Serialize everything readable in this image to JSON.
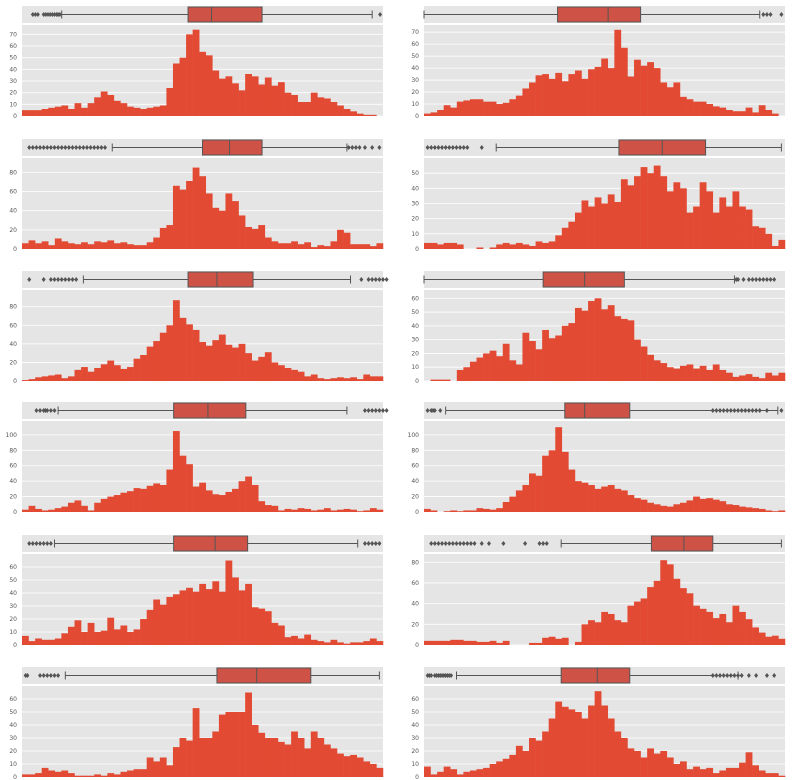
{
  "figure": {
    "colors": {
      "hist_fill": "#E24A33",
      "box_fill": "#CF5246",
      "box_line": "#555555",
      "panel_bg": "#E5E5E5",
      "grid": "#FFFFFF",
      "tick_text": "#555555",
      "page_bg": "#FFFFFF"
    }
  },
  "chart_data": [
    {
      "type": "histogram+boxplot",
      "grid": true,
      "ylim": [
        0,
        78
      ],
      "yticks": [
        "0",
        "10",
        "20",
        "30",
        "40",
        "50",
        "60",
        "70"
      ],
      "counts": [
        5,
        5,
        5,
        6,
        7,
        8,
        9,
        6,
        11,
        7,
        11,
        16,
        21,
        18,
        13,
        11,
        8,
        7,
        6,
        7,
        8,
        9,
        24,
        45,
        50,
        70,
        74,
        55,
        52,
        39,
        32,
        34,
        28,
        22,
        36,
        34,
        27,
        33,
        26,
        29,
        20,
        18,
        12,
        12,
        20,
        16,
        15,
        12,
        9,
        6,
        4,
        2,
        1,
        1,
        0
      ],
      "box": {
        "min": 0.11,
        "q1": 0.46,
        "median": 0.525,
        "q3": 0.665,
        "max": 0.97
      },
      "outliers": [
        0.03,
        0.037,
        0.044,
        0.06,
        0.066,
        0.072,
        0.078,
        0.084,
        0.09,
        0.096,
        0.1,
        0.105,
        0.992
      ]
    },
    {
      "type": "histogram+boxplot",
      "grid": true,
      "ylim": [
        0,
        76
      ],
      "yticks": [
        "0",
        "10",
        "20",
        "30",
        "40",
        "50",
        "60",
        "70"
      ],
      "counts": [
        2,
        3,
        5,
        9,
        7,
        12,
        13,
        14,
        14,
        12,
        12,
        10,
        11,
        14,
        17,
        23,
        28,
        34,
        35,
        31,
        36,
        29,
        35,
        38,
        31,
        39,
        41,
        48,
        40,
        72,
        57,
        33,
        47,
        42,
        45,
        40,
        28,
        24,
        28,
        16,
        14,
        12,
        12,
        10,
        8,
        7,
        5,
        4,
        4,
        7,
        3,
        9,
        5,
        2,
        0
      ],
      "box": {
        "min": 0.0,
        "q1": 0.37,
        "median": 0.51,
        "q3": 0.6,
        "max": 0.93
      },
      "outliers": [
        0.94,
        0.95,
        0.96,
        0.99
      ]
    },
    {
      "type": "histogram+boxplot",
      "grid": true,
      "ylim": [
        0,
        95
      ],
      "yticks": [
        "0",
        "20",
        "40",
        "60",
        "80"
      ],
      "counts": [
        6,
        9,
        6,
        8,
        4,
        11,
        8,
        6,
        5,
        7,
        5,
        8,
        7,
        9,
        6,
        7,
        5,
        4,
        4,
        7,
        12,
        22,
        25,
        66,
        62,
        71,
        85,
        76,
        58,
        43,
        40,
        58,
        50,
        35,
        23,
        21,
        25,
        12,
        8,
        6,
        6,
        8,
        5,
        7,
        2,
        4,
        3,
        8,
        20,
        17,
        5,
        5,
        5,
        3,
        6
      ],
      "box": {
        "min": 0.25,
        "q1": 0.5,
        "median": 0.575,
        "q3": 0.665,
        "max": 0.9
      },
      "outliers": [
        0.02,
        0.03,
        0.04,
        0.05,
        0.06,
        0.07,
        0.08,
        0.09,
        0.1,
        0.11,
        0.12,
        0.13,
        0.14,
        0.15,
        0.16,
        0.17,
        0.18,
        0.19,
        0.2,
        0.21,
        0.22,
        0.23,
        0.905,
        0.915,
        0.925,
        0.935,
        0.95,
        0.97,
        0.99
      ]
    },
    {
      "type": "histogram+boxplot",
      "grid": true,
      "ylim": [
        0,
        60
      ],
      "yticks": [
        "0",
        "10",
        "20",
        "30",
        "40",
        "50"
      ],
      "counts": [
        4,
        4,
        3,
        4,
        4,
        3,
        0,
        0,
        1,
        0,
        1,
        3,
        4,
        3,
        4,
        3,
        2,
        5,
        4,
        5,
        9,
        14,
        18,
        24,
        32,
        28,
        34,
        30,
        36,
        31,
        46,
        42,
        48,
        54,
        50,
        55,
        48,
        38,
        44,
        40,
        24,
        28,
        44,
        38,
        24,
        34,
        28,
        38,
        28,
        26,
        15,
        14,
        10,
        2,
        6
      ],
      "box": {
        "min": 0.2,
        "q1": 0.54,
        "median": 0.66,
        "q3": 0.78,
        "max": 0.99
      },
      "outliers": [
        0.01,
        0.02,
        0.03,
        0.04,
        0.05,
        0.06,
        0.07,
        0.08,
        0.09,
        0.1,
        0.11,
        0.12,
        0.16
      ]
    },
    {
      "type": "histogram+boxplot",
      "grid": true,
      "ylim": [
        0,
        98
      ],
      "yticks": [
        "0",
        "20",
        "40",
        "60",
        "80"
      ],
      "counts": [
        1,
        2,
        4,
        5,
        6,
        7,
        3,
        5,
        12,
        15,
        10,
        14,
        18,
        22,
        17,
        13,
        15,
        24,
        28,
        37,
        43,
        52,
        60,
        87,
        68,
        61,
        55,
        42,
        38,
        44,
        50,
        39,
        36,
        40,
        30,
        22,
        26,
        31,
        20,
        17,
        14,
        12,
        10,
        5,
        7,
        3,
        2,
        3,
        4,
        3,
        4,
        2,
        7,
        5,
        5
      ],
      "box": {
        "min": 0.17,
        "q1": 0.46,
        "median": 0.54,
        "q3": 0.64,
        "max": 0.91
      },
      "outliers": [
        0.02,
        0.06,
        0.08,
        0.09,
        0.1,
        0.11,
        0.12,
        0.13,
        0.14,
        0.15,
        0.94,
        0.96,
        0.97,
        0.98,
        0.99,
        1.0,
        1.01
      ]
    },
    {
      "type": "histogram+boxplot",
      "grid": true,
      "ylim": [
        0,
        66
      ],
      "yticks": [
        "0",
        "10",
        "20",
        "30",
        "40",
        "50",
        "60"
      ],
      "counts": [
        0,
        1,
        1,
        1,
        0,
        8,
        10,
        14,
        17,
        20,
        22,
        18,
        27,
        15,
        12,
        35,
        29,
        23,
        37,
        31,
        33,
        40,
        42,
        53,
        51,
        58,
        60,
        52,
        55,
        47,
        45,
        44,
        30,
        25,
        19,
        15,
        13,
        10,
        9,
        11,
        12,
        9,
        11,
        8,
        12,
        8,
        6,
        3,
        4,
        5,
        3,
        2,
        6,
        4,
        6
      ],
      "box": {
        "min": 0.0,
        "q1": 0.33,
        "median": 0.445,
        "q3": 0.555,
        "max": 0.86
      },
      "outliers": [
        0.865,
        0.87,
        0.885,
        0.9,
        0.91,
        0.92,
        0.93,
        0.94,
        0.95,
        0.96,
        0.97
      ]
    },
    {
      "type": "histogram+boxplot",
      "grid": true,
      "ylim": [
        0,
        118
      ],
      "yticks": [
        "0",
        "20",
        "40",
        "60",
        "80",
        "100"
      ],
      "counts": [
        3,
        8,
        4,
        2,
        3,
        5,
        7,
        12,
        15,
        8,
        2,
        12,
        17,
        20,
        22,
        25,
        27,
        31,
        30,
        34,
        37,
        35,
        55,
        105,
        73,
        62,
        33,
        38,
        28,
        23,
        22,
        26,
        30,
        40,
        46,
        35,
        14,
        9,
        8,
        2,
        4,
        3,
        5,
        4,
        2,
        3,
        5,
        2,
        3,
        4,
        3,
        1,
        2,
        5,
        3
      ],
      "box": {
        "min": 0.1,
        "q1": 0.42,
        "median": 0.515,
        "q3": 0.62,
        "max": 0.9
      },
      "outliers": [
        0.04,
        0.05,
        0.06,
        0.065,
        0.07,
        0.08,
        0.09,
        0.95,
        0.96,
        0.97,
        0.98,
        0.99,
        1.0,
        1.01
      ]
    },
    {
      "type": "histogram+boxplot",
      "grid": true,
      "ylim": [
        0,
        118
      ],
      "yticks": [
        "0",
        "20",
        "40",
        "60",
        "80",
        "100"
      ],
      "counts": [
        4,
        2,
        0,
        1,
        2,
        1,
        2,
        2,
        5,
        4,
        3,
        5,
        13,
        20,
        28,
        35,
        50,
        47,
        73,
        80,
        110,
        78,
        55,
        40,
        38,
        35,
        30,
        33,
        35,
        30,
        28,
        22,
        18,
        16,
        12,
        10,
        8,
        7,
        10,
        12,
        15,
        20,
        17,
        18,
        16,
        14,
        10,
        9,
        7,
        6,
        5,
        4,
        2,
        1,
        2
      ],
      "box": {
        "min": 0.06,
        "q1": 0.39,
        "median": 0.445,
        "q3": 0.57,
        "max": 0.98
      },
      "outliers": [
        0.01,
        0.02,
        0.025,
        0.03,
        0.045,
        0.8,
        0.81,
        0.82,
        0.83,
        0.84,
        0.85,
        0.86,
        0.87,
        0.88,
        0.89,
        0.9,
        0.91,
        0.92,
        0.93,
        0.95,
        0.99
      ]
    },
    {
      "type": "histogram+boxplot",
      "grid": true,
      "ylim": [
        0,
        70
      ],
      "yticks": [
        "0",
        "10",
        "20",
        "30",
        "40",
        "50",
        "60"
      ],
      "counts": [
        7,
        3,
        5,
        4,
        4,
        5,
        9,
        14,
        19,
        10,
        17,
        10,
        11,
        21,
        12,
        15,
        10,
        12,
        20,
        27,
        35,
        31,
        37,
        39,
        42,
        44,
        41,
        47,
        43,
        49,
        41,
        65,
        52,
        42,
        47,
        29,
        28,
        26,
        17,
        15,
        6,
        7,
        5,
        8,
        4,
        3,
        2,
        4,
        2,
        1,
        2,
        2,
        3,
        5,
        3
      ],
      "box": {
        "min": 0.09,
        "q1": 0.42,
        "median": 0.535,
        "q3": 0.625,
        "max": 0.93
      },
      "outliers": [
        0.02,
        0.03,
        0.04,
        0.05,
        0.06,
        0.07,
        0.08,
        0.95,
        0.96,
        0.97,
        0.98,
        0.99
      ]
    },
    {
      "type": "histogram+boxplot",
      "grid": true,
      "ylim": [
        0,
        88
      ],
      "yticks": [
        "0",
        "20",
        "40",
        "60",
        "80"
      ],
      "counts": [
        4,
        4,
        4,
        4,
        5,
        5,
        4,
        4,
        3,
        3,
        4,
        2,
        4,
        0,
        0,
        0,
        2,
        2,
        7,
        8,
        6,
        7,
        0,
        3,
        20,
        24,
        22,
        32,
        30,
        24,
        22,
        38,
        42,
        45,
        56,
        62,
        82,
        78,
        64,
        55,
        50,
        38,
        35,
        32,
        26,
        30,
        22,
        38,
        32,
        25,
        17,
        12,
        8,
        9,
        6
      ],
      "box": {
        "min": 0.38,
        "q1": 0.63,
        "median": 0.72,
        "q3": 0.8,
        "max": 0.99
      },
      "outliers": [
        0.02,
        0.03,
        0.04,
        0.05,
        0.06,
        0.07,
        0.08,
        0.09,
        0.1,
        0.11,
        0.12,
        0.13,
        0.14,
        0.16,
        0.18,
        0.22,
        0.28,
        0.32,
        0.33,
        0.34
      ]
    },
    {
      "type": "histogram+boxplot",
      "grid": true,
      "ylim": [
        0,
        70
      ],
      "yticks": [
        "0",
        "10",
        "20",
        "30",
        "40",
        "50",
        "60"
      ],
      "counts": [
        2,
        2,
        3,
        7,
        5,
        4,
        5,
        3,
        1,
        1,
        1,
        2,
        1,
        3,
        2,
        4,
        5,
        6,
        6,
        15,
        12,
        15,
        9,
        23,
        30,
        28,
        53,
        30,
        30,
        35,
        48,
        50,
        50,
        50,
        65,
        40,
        34,
        30,
        30,
        27,
        25,
        35,
        30,
        22,
        35,
        30,
        25,
        22,
        18,
        16,
        17,
        15,
        12,
        10,
        7
      ],
      "box": {
        "min": 0.12,
        "q1": 0.54,
        "median": 0.65,
        "q3": 0.8,
        "max": 0.99
      },
      "outliers": [
        0.01,
        0.015,
        0.05,
        0.06,
        0.07,
        0.08,
        0.09,
        0.1
      ]
    },
    {
      "type": "histogram+boxplot",
      "grid": true,
      "ylim": [
        0,
        70
      ],
      "yticks": [
        "0",
        "10",
        "20",
        "30",
        "40",
        "50",
        "60"
      ],
      "counts": [
        8,
        2,
        4,
        8,
        6,
        2,
        4,
        5,
        6,
        7,
        10,
        12,
        14,
        17,
        24,
        20,
        30,
        28,
        35,
        45,
        58,
        54,
        52,
        50,
        45,
        55,
        66,
        55,
        45,
        35,
        30,
        22,
        20,
        15,
        22,
        18,
        20,
        15,
        10,
        12,
        6,
        8,
        6,
        7,
        3,
        5,
        7,
        7,
        11,
        19,
        9,
        5,
        3,
        3,
        1
      ],
      "box": {
        "min": 0.09,
        "q1": 0.38,
        "median": 0.48,
        "q3": 0.57,
        "max": 0.87
      },
      "outliers": [
        0.01,
        0.015,
        0.02,
        0.03,
        0.035,
        0.04,
        0.045,
        0.05,
        0.055,
        0.06,
        0.065,
        0.07,
        0.075,
        0.8,
        0.81,
        0.82,
        0.83,
        0.84,
        0.85,
        0.86,
        0.87,
        0.88,
        0.9,
        0.92,
        0.95,
        0.97
      ]
    }
  ]
}
